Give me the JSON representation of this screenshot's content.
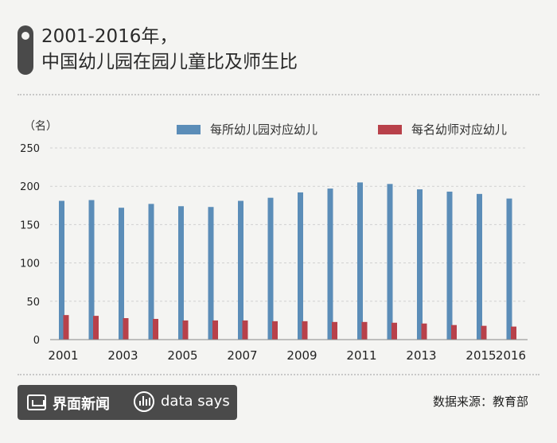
{
  "header": {
    "title_line1": "2001-2016年，",
    "title_line2": "中国幼儿园在园儿童比及师生比"
  },
  "footer": {
    "brand": "界面新闻",
    "data_says": "data says",
    "source": "数据来源：教育部"
  },
  "colors": {
    "series1": "#5b8db8",
    "series2": "#b8414a"
  },
  "chart_data": {
    "type": "bar",
    "unit_label": "（名）",
    "categories": [
      "2001",
      "2002",
      "2003",
      "2004",
      "2005",
      "2006",
      "2007",
      "2008",
      "2009",
      "2010",
      "2011",
      "2012",
      "2013",
      "2014",
      "2015",
      "2016"
    ],
    "x_tick_labels": [
      "2001",
      "",
      "2003",
      "",
      "2005",
      "",
      "2007",
      "",
      "2009",
      "",
      "2011",
      "",
      "2013",
      "",
      "2015",
      "2016"
    ],
    "series": [
      {
        "name": "每所幼儿园对应幼儿",
        "values": [
          181,
          182,
          172,
          177,
          174,
          173,
          181,
          185,
          192,
          197,
          205,
          203,
          196,
          193,
          190,
          184
        ]
      },
      {
        "name": "每名幼师对应幼儿",
        "values": [
          32,
          31,
          28,
          27,
          25,
          25,
          25,
          24,
          24,
          23,
          23,
          22,
          21,
          19,
          18,
          17
        ]
      }
    ],
    "y_ticks": [
      0,
      50,
      100,
      150,
      200,
      250
    ],
    "ylim": [
      0,
      250
    ],
    "grid": true,
    "legend_position": "top"
  }
}
